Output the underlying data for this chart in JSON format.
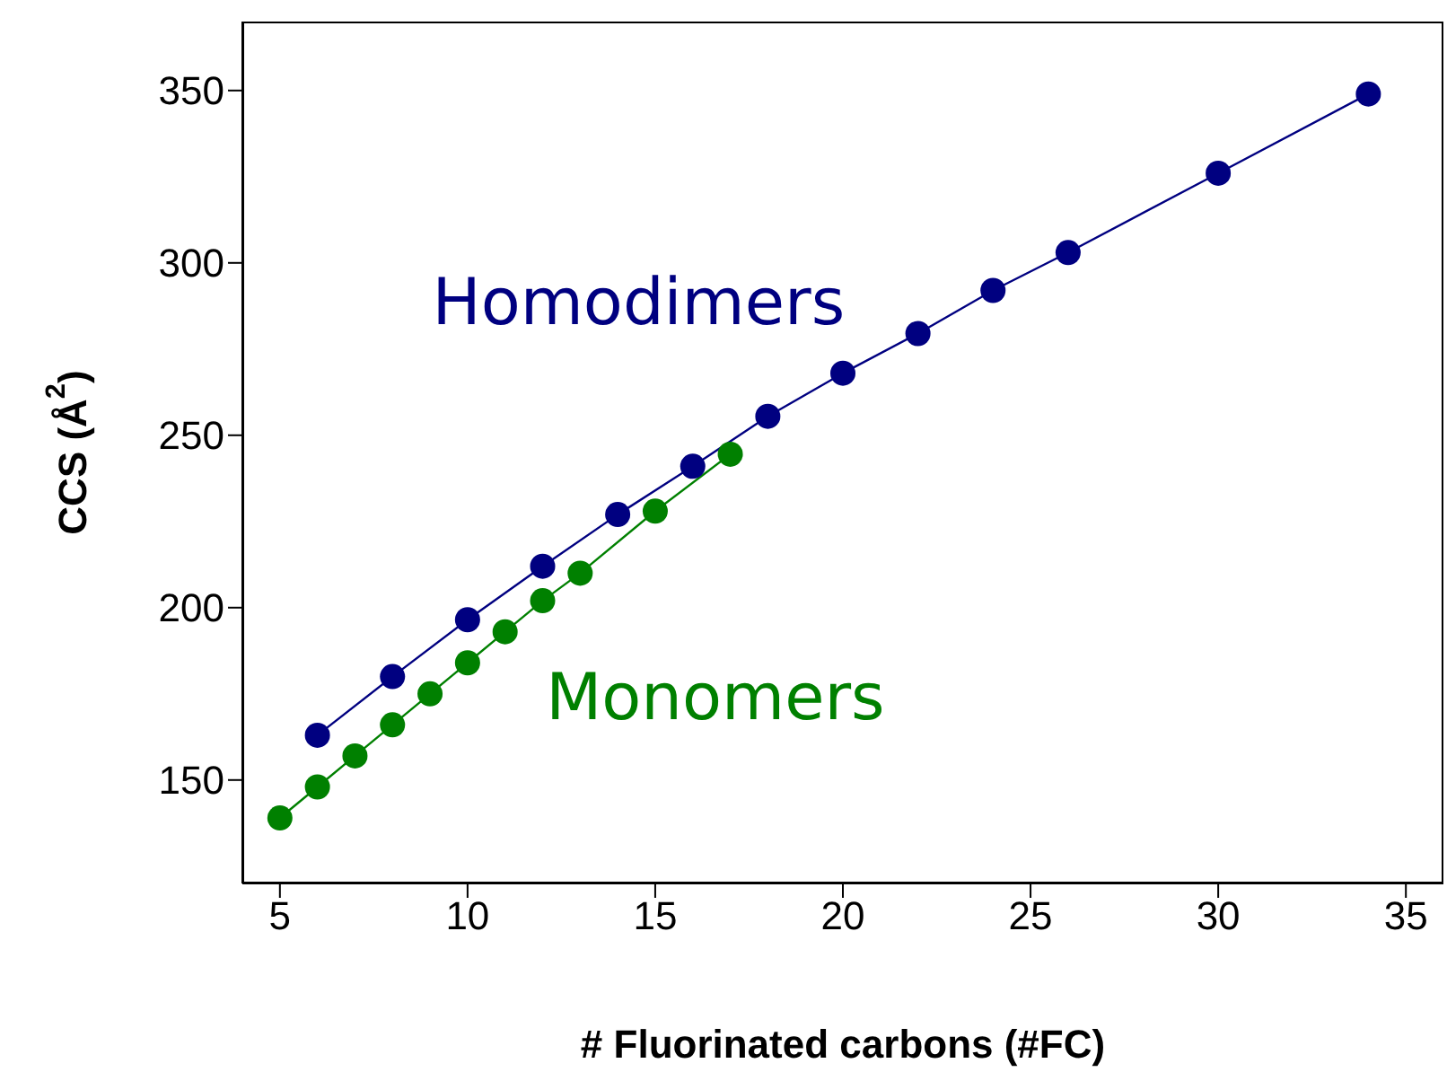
{
  "chart_data": {
    "type": "line",
    "xlabel": "# Fluorinated carbons (#FC)",
    "ylabel": "CCS (Å$^{2}$)",
    "xlim": [
      4,
      36
    ],
    "xticks": [
      5,
      10,
      15,
      20,
      25,
      30,
      35
    ],
    "ylim": [
      120,
      370
    ],
    "yticks": [
      150,
      200,
      250,
      300,
      350
    ],
    "marker": "circle",
    "series": [
      {
        "name": "Homodimers",
        "color": "#000080",
        "x": [
          6,
          8,
          10,
          12,
          14,
          16,
          18,
          20,
          22,
          24,
          26,
          30,
          34
        ],
        "values": [
          163,
          180,
          196.5,
          212,
          227,
          241,
          255.5,
          268,
          279.5,
          292,
          303,
          326,
          349
        ]
      },
      {
        "name": "Monomers",
        "color": "#008000",
        "x": [
          5,
          6,
          7,
          8,
          9,
          10,
          11,
          12,
          13,
          15,
          17
        ],
        "values": [
          139,
          148,
          157,
          166,
          175,
          184,
          193,
          202,
          210,
          228,
          244.5
        ]
      }
    ]
  }
}
